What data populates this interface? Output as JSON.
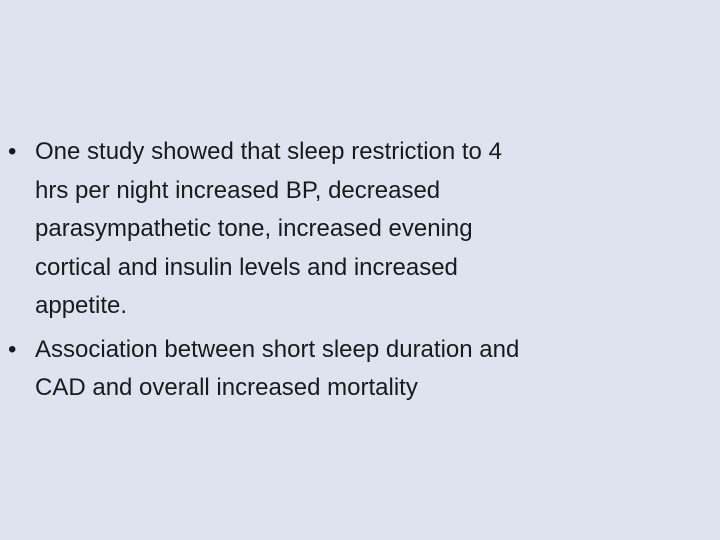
{
  "bullets": [
    {
      "lines": [
        "One study showed that sleep restriction to 4",
        "hrs per night increased BP, decreased",
        "parasympathetic tone, increased evening",
        "cortical and insulin levels and increased",
        "appetite."
      ]
    },
    {
      "lines": [
        "Association between short sleep duration and",
        "CAD and overall increased mortality"
      ]
    }
  ]
}
